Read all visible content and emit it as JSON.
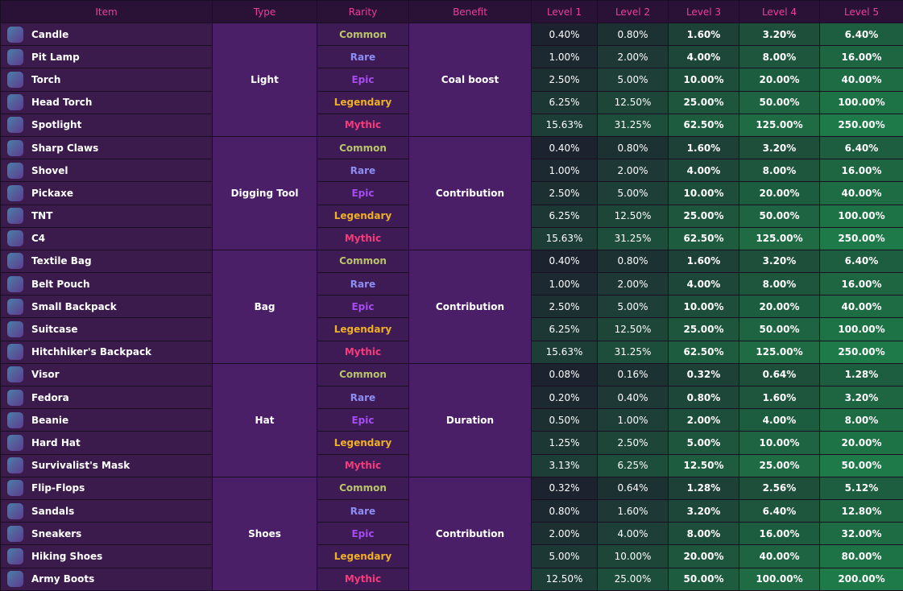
{
  "table": {
    "columns": [
      "Item",
      "Type",
      "Rarity",
      "Benefit",
      "Level 1",
      "Level 2",
      "Level 3",
      "Level 4",
      "Level 5"
    ],
    "groups": [
      {
        "type": "Light",
        "benefit": "Coal boost",
        "items": [
          {
            "name": "Candle",
            "rarity": "Common",
            "levels": [
              "0.40%",
              "0.80%",
              "1.60%",
              "3.20%",
              "6.40%"
            ]
          },
          {
            "name": "Pit Lamp",
            "rarity": "Rare",
            "levels": [
              "1.00%",
              "2.00%",
              "4.00%",
              "8.00%",
              "16.00%"
            ]
          },
          {
            "name": "Torch",
            "rarity": "Epic",
            "levels": [
              "2.50%",
              "5.00%",
              "10.00%",
              "20.00%",
              "40.00%"
            ]
          },
          {
            "name": "Head Torch",
            "rarity": "Legendary",
            "levels": [
              "6.25%",
              "12.50%",
              "25.00%",
              "50.00%",
              "100.00%"
            ]
          },
          {
            "name": "Spotlight",
            "rarity": "Mythic",
            "levels": [
              "15.63%",
              "31.25%",
              "62.50%",
              "125.00%",
              "250.00%"
            ]
          }
        ]
      },
      {
        "type": "Digging Tool",
        "benefit": "Contribution",
        "items": [
          {
            "name": "Sharp Claws",
            "rarity": "Common",
            "levels": [
              "0.40%",
              "0.80%",
              "1.60%",
              "3.20%",
              "6.40%"
            ]
          },
          {
            "name": "Shovel",
            "rarity": "Rare",
            "levels": [
              "1.00%",
              "2.00%",
              "4.00%",
              "8.00%",
              "16.00%"
            ]
          },
          {
            "name": "Pickaxe",
            "rarity": "Epic",
            "levels": [
              "2.50%",
              "5.00%",
              "10.00%",
              "20.00%",
              "40.00%"
            ]
          },
          {
            "name": "TNT",
            "rarity": "Legendary",
            "levels": [
              "6.25%",
              "12.50%",
              "25.00%",
              "50.00%",
              "100.00%"
            ]
          },
          {
            "name": "C4",
            "rarity": "Mythic",
            "levels": [
              "15.63%",
              "31.25%",
              "62.50%",
              "125.00%",
              "250.00%"
            ]
          }
        ]
      },
      {
        "type": "Bag",
        "benefit": "Contribution",
        "items": [
          {
            "name": "Textile Bag",
            "rarity": "Common",
            "levels": [
              "0.40%",
              "0.80%",
              "1.60%",
              "3.20%",
              "6.40%"
            ]
          },
          {
            "name": "Belt Pouch",
            "rarity": "Rare",
            "levels": [
              "1.00%",
              "2.00%",
              "4.00%",
              "8.00%",
              "16.00%"
            ]
          },
          {
            "name": "Small Backpack",
            "rarity": "Epic",
            "levels": [
              "2.50%",
              "5.00%",
              "10.00%",
              "20.00%",
              "40.00%"
            ]
          },
          {
            "name": "Suitcase",
            "rarity": "Legendary",
            "levels": [
              "6.25%",
              "12.50%",
              "25.00%",
              "50.00%",
              "100.00%"
            ]
          },
          {
            "name": "Hitchhiker's Backpack",
            "rarity": "Mythic",
            "levels": [
              "15.63%",
              "31.25%",
              "62.50%",
              "125.00%",
              "250.00%"
            ]
          }
        ]
      },
      {
        "type": "Hat",
        "benefit": "Duration",
        "items": [
          {
            "name": "Visor",
            "rarity": "Common",
            "levels": [
              "0.08%",
              "0.16%",
              "0.32%",
              "0.64%",
              "1.28%"
            ]
          },
          {
            "name": "Fedora",
            "rarity": "Rare",
            "levels": [
              "0.20%",
              "0.40%",
              "0.80%",
              "1.60%",
              "3.20%"
            ]
          },
          {
            "name": "Beanie",
            "rarity": "Epic",
            "levels": [
              "0.50%",
              "1.00%",
              "2.00%",
              "4.00%",
              "8.00%"
            ]
          },
          {
            "name": "Hard Hat",
            "rarity": "Legendary",
            "levels": [
              "1.25%",
              "2.50%",
              "5.00%",
              "10.00%",
              "20.00%"
            ]
          },
          {
            "name": "Survivalist's Mask",
            "rarity": "Mythic",
            "levels": [
              "3.13%",
              "6.25%",
              "12.50%",
              "25.00%",
              "50.00%"
            ]
          }
        ]
      },
      {
        "type": "Shoes",
        "benefit": "Contribution",
        "items": [
          {
            "name": "Flip-Flops",
            "rarity": "Common",
            "levels": [
              "0.32%",
              "0.64%",
              "1.28%",
              "2.56%",
              "5.12%"
            ]
          },
          {
            "name": "Sandals",
            "rarity": "Rare",
            "levels": [
              "0.80%",
              "1.60%",
              "3.20%",
              "6.40%",
              "12.80%"
            ]
          },
          {
            "name": "Sneakers",
            "rarity": "Epic",
            "levels": [
              "2.00%",
              "4.00%",
              "8.00%",
              "16.00%",
              "32.00%"
            ]
          },
          {
            "name": "Hiking Shoes",
            "rarity": "Legendary",
            "levels": [
              "5.00%",
              "10.00%",
              "20.00%",
              "40.00%",
              "80.00%"
            ]
          },
          {
            "name": "Army Boots",
            "rarity": "Mythic",
            "levels": [
              "12.50%",
              "25.00%",
              "50.00%",
              "100.00%",
              "200.00%"
            ]
          }
        ]
      }
    ]
  }
}
